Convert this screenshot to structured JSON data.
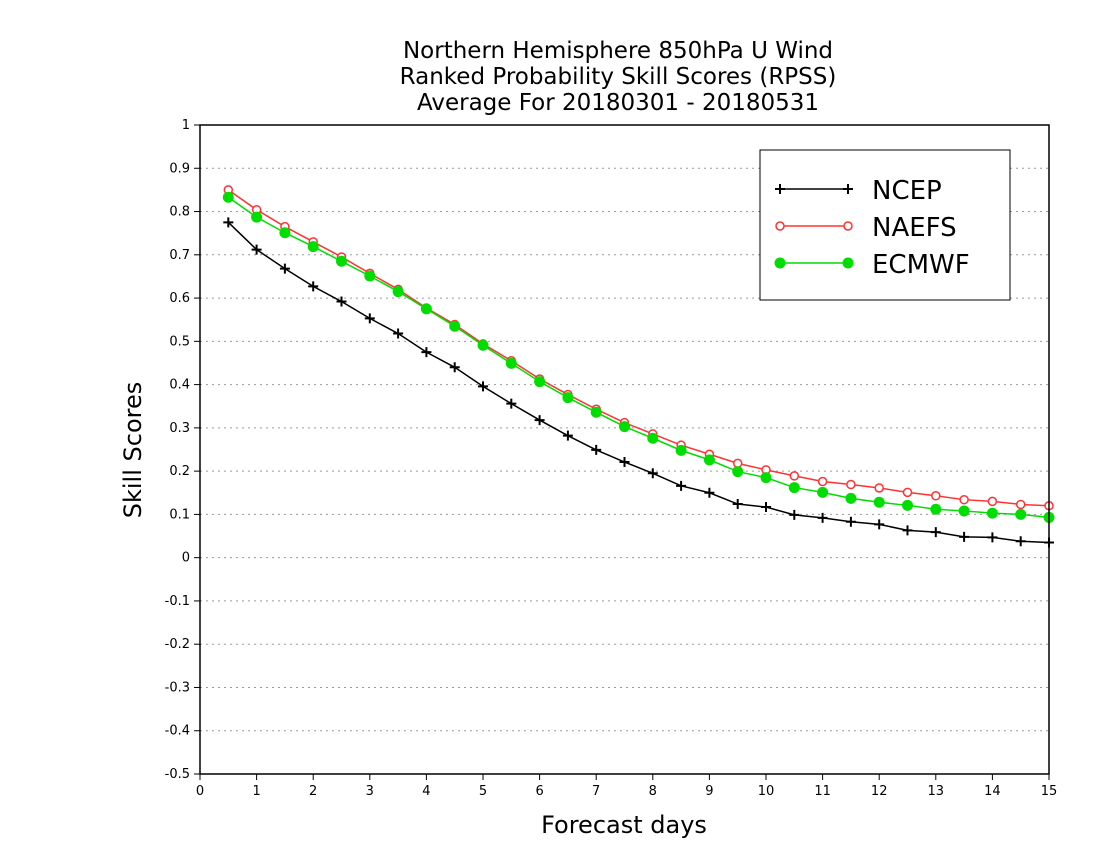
{
  "chart_data": {
    "type": "line",
    "title_lines": [
      "Northern Hemisphere 850hPa U Wind",
      "Ranked Probability Skill Scores (RPSS)",
      "Average For 20180301 - 20180531"
    ],
    "xlabel": "Forecast days",
    "ylabel": "Skill Scores",
    "xlim": [
      0,
      15
    ],
    "ylim": [
      -0.5,
      1
    ],
    "x_ticks": [
      0,
      1,
      2,
      3,
      4,
      5,
      6,
      7,
      8,
      9,
      10,
      11,
      12,
      13,
      14,
      15
    ],
    "y_ticks": [
      -0.5,
      -0.4,
      -0.3,
      -0.2,
      -0.1,
      0,
      0.1,
      0.2,
      0.3,
      0.4,
      0.5,
      0.6,
      0.7,
      0.8,
      0.9,
      1
    ],
    "y_tick_labels": [
      "-0.5",
      "-0.4",
      "-0.3",
      "-0.2",
      "-0.1",
      "0",
      "0.1",
      "0.2",
      "0.3",
      "0.4",
      "0.5",
      "0.6",
      "0.7",
      "0.8",
      "0.9",
      "1"
    ],
    "grid": "horizontal dotted",
    "legend_position": "top-right",
    "x": [
      0.5,
      1,
      1.5,
      2,
      2.5,
      3,
      3.5,
      4,
      4.5,
      5,
      5.5,
      6,
      6.5,
      7,
      7.5,
      8,
      8.5,
      9,
      9.5,
      10,
      10.5,
      11,
      11.5,
      12,
      12.5,
      13,
      13.5,
      14,
      14.5,
      15
    ],
    "series": [
      {
        "name": "NCEP",
        "color": "#000000",
        "marker": "plus",
        "values": [
          0.775,
          0.712,
          0.668,
          0.627,
          0.592,
          0.553,
          0.518,
          0.475,
          0.44,
          0.396,
          0.356,
          0.318,
          0.282,
          0.249,
          0.221,
          0.195,
          0.166,
          0.15,
          0.124,
          0.117,
          0.099,
          0.092,
          0.083,
          0.077,
          0.063,
          0.059,
          0.048,
          0.047,
          0.038,
          0.035
        ]
      },
      {
        "name": "NAEFS",
        "color": "#ff3333",
        "marker": "open-circle",
        "values": [
          0.85,
          0.804,
          0.765,
          0.73,
          0.695,
          0.657,
          0.62,
          0.577,
          0.539,
          0.494,
          0.455,
          0.413,
          0.377,
          0.343,
          0.312,
          0.286,
          0.26,
          0.239,
          0.218,
          0.203,
          0.189,
          0.176,
          0.169,
          0.161,
          0.151,
          0.143,
          0.134,
          0.13,
          0.123,
          0.12
        ]
      },
      {
        "name": "ECMWF",
        "color": "#00dd00",
        "marker": "filled-circle",
        "values": [
          0.833,
          0.787,
          0.751,
          0.719,
          0.685,
          0.651,
          0.615,
          0.575,
          0.535,
          0.491,
          0.449,
          0.407,
          0.37,
          0.336,
          0.303,
          0.276,
          0.248,
          0.226,
          0.199,
          0.185,
          0.162,
          0.151,
          0.137,
          0.128,
          0.121,
          0.112,
          0.108,
          0.103,
          0.1,
          0.093
        ]
      }
    ]
  }
}
